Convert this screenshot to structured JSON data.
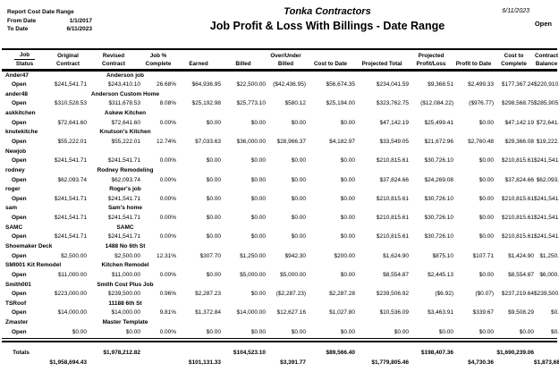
{
  "report": {
    "cost_date_range_label": "Report Cost Date Range",
    "from_date_label": "From Date",
    "from_date": "1/1/2017",
    "to_date_label": "To Date",
    "to_date": "6/11/2023",
    "company": "Tonka Contractors",
    "title": "Job Profit & Loss With Billings - Date Range",
    "print_date": "6/11/2023",
    "status_filter": "Open"
  },
  "table": {
    "columns": [
      {
        "key": "job_status",
        "line1": "Job",
        "line2": "Status"
      },
      {
        "key": "original_contract",
        "line1": "Original",
        "line2": "Contract"
      },
      {
        "key": "revised_contract",
        "line1": "Revised",
        "line2": "Contract"
      },
      {
        "key": "job_pct_complete",
        "line1": "Job %",
        "line2": "Complete"
      },
      {
        "key": "earned",
        "line1": "",
        "line2": "Earned"
      },
      {
        "key": "billed",
        "line1": "",
        "line2": "Billed"
      },
      {
        "key": "over_under_billed",
        "line1": "Over/Under",
        "line2": "Billed"
      },
      {
        "key": "cost_to_date",
        "line1": "",
        "line2": "Cost to Date"
      },
      {
        "key": "projected_total",
        "line1": "",
        "line2": "Projected Total"
      },
      {
        "key": "projected_profit_loss",
        "line1": "Projected",
        "line2": "Profit/Loss"
      },
      {
        "key": "profit_to_date",
        "line1": "",
        "line2": "Profit to Date"
      },
      {
        "key": "cost_to_complete",
        "line1": "Cost to",
        "line2": "Complete"
      },
      {
        "key": "contract_balance",
        "line1": "Contract",
        "line2": "Balance"
      }
    ],
    "jobs": [
      {
        "id": "Ander47",
        "name": "Anderson job",
        "status": "Open",
        "values": [
          "$241,541.71",
          "$243,410.10",
          "26.68%",
          "$64,936.95",
          "$22,500.00",
          "($42,436.95)",
          "$56,674.35",
          "$234,041.59",
          "$9,368.51",
          "$2,499.33",
          "$177,367.24",
          "$220,910."
        ]
      },
      {
        "id": "ander48",
        "name": "Anderson Custom Home",
        "status": "Open",
        "values": [
          "$310,528.53",
          "$311,678.53",
          "8.08%",
          "$25,192.98",
          "$25,773.10",
          "$580.12",
          "$25,194.00",
          "$323,762.75",
          "($12,084.22)",
          "($976.77)",
          "$298,568.75",
          "$285,905."
        ]
      },
      {
        "id": "askkitchen",
        "name": "Askew Kitchen",
        "status": "Open",
        "values": [
          "$72,641.60",
          "$72,641.60",
          "0.00%",
          "$0.00",
          "$0.00",
          "$0.00",
          "$0.00",
          "$47,142.19",
          "$25,499.41",
          "$0.00",
          "$47,142.19",
          "$72,641."
        ]
      },
      {
        "id": "knutekitche",
        "name": "Knutson's Kitchen",
        "status": "Open",
        "values": [
          "$55,222.01",
          "$55,222.01",
          "12.74%",
          "$7,033.63",
          "$36,000.00",
          "$28,966.37",
          "$4,182.97",
          "$33,549.05",
          "$21,672.96",
          "$2,760.48",
          "$29,366.08",
          "$19,222."
        ]
      },
      {
        "id": "Newjob",
        "name": "",
        "status": "Open",
        "values": [
          "$241,541.71",
          "$241,541.71",
          "0.00%",
          "$0.00",
          "$0.00",
          "$0.00",
          "$0.00",
          "$210,815.61",
          "$30,726.10",
          "$0.00",
          "$210,815.61",
          "$241,541."
        ]
      },
      {
        "id": "rodney",
        "name": "Rodney Remodeling",
        "status": "Open",
        "values": [
          "$62,093.74",
          "$62,093.74",
          "0.00%",
          "$0.00",
          "$0.00",
          "$0.00",
          "$0.00",
          "$37,824.66",
          "$24,269.08",
          "$0.00",
          "$37,824.66",
          "$62,093."
        ]
      },
      {
        "id": "roger",
        "name": "Roger's job",
        "status": "Open",
        "values": [
          "$241,541.71",
          "$241,541.71",
          "0.00%",
          "$0.00",
          "$0.00",
          "$0.00",
          "$0.00",
          "$210,815.61",
          "$30,726.10",
          "$0.00",
          "$210,815.61",
          "$241,541."
        ]
      },
      {
        "id": "sam",
        "name": "Sam's home",
        "status": "Open",
        "values": [
          "$241,541.71",
          "$241,541.71",
          "0.00%",
          "$0.00",
          "$0.00",
          "$0.00",
          "$0.00",
          "$210,815.61",
          "$30,726.10",
          "$0.00",
          "$210,815.61",
          "$241,541."
        ]
      },
      {
        "id": "SAMC",
        "name": "SAMC",
        "status": "Open",
        "values": [
          "$241,541.71",
          "$241,541.71",
          "0.00%",
          "$0.00",
          "$0.00",
          "$0.00",
          "$0.00",
          "$210,815.61",
          "$30,726.10",
          "$0.00",
          "$210,815.61",
          "$241,541."
        ]
      },
      {
        "id": "Shoemaker Deck",
        "name": "1488 No 6th St",
        "status": "Open",
        "values": [
          "$2,500.00",
          "$2,500.00",
          "12.31%",
          "$307.70",
          "$1,250.00",
          "$942.30",
          "$200.00",
          "$1,624.90",
          "$875.10",
          "$107.71",
          "$1,424.90",
          "$1,250."
        ]
      },
      {
        "id": "SMI001 Kit Remodel",
        "name": "Kitchen Remodel",
        "status": "Open",
        "values": [
          "$11,000.00",
          "$11,000.00",
          "0.00%",
          "$0.00",
          "$5,000.00",
          "$5,000.00",
          "$0.00",
          "$8,554.87",
          "$2,445.13",
          "$0.00",
          "$8,554.87",
          "$6,000."
        ]
      },
      {
        "id": "Smith001",
        "name": "Smith Cost Plus Job",
        "status": "Open",
        "values": [
          "$223,000.00",
          "$239,500.00",
          "0.96%",
          "$2,287.23",
          "$0.00",
          "($2,287.23)",
          "$2,287.28",
          "$239,506.92",
          "($6.92)",
          "($0.07)",
          "$237,219.64",
          "$239,500."
        ]
      },
      {
        "id": "TSRoof",
        "name": "11188 6th St",
        "status": "Open",
        "values": [
          "$14,000.00",
          "$14,000.00",
          "9.81%",
          "$1,372.84",
          "$14,000.00",
          "$12,627.16",
          "$1,027.80",
          "$10,536.09",
          "$3,463.91",
          "$339.67",
          "$9,508.29",
          "$0."
        ]
      },
      {
        "id": "Zmaster",
        "name": "Master Template",
        "status": "Open",
        "values": [
          "$0.00",
          "$0.00",
          "0.00%",
          "$0.00",
          "$0.00",
          "$0.00",
          "$0.00",
          "$0.00",
          "$0.00",
          "$0.00",
          "$0.00",
          "$0."
        ]
      }
    ],
    "totals": {
      "row1": [
        "Totals",
        "",
        "$1,978,212.82",
        "",
        "",
        "$104,523.10",
        "",
        "$89,566.40",
        "",
        "$198,407.36",
        "",
        "$1,690,239.06",
        ""
      ],
      "row2": [
        "",
        "$1,958,694.43",
        "",
        "",
        "$101,131.33",
        "",
        "$3,391.77",
        "",
        "$1,779,805.46",
        "",
        "$4,730.36",
        "",
        "$1,873,689."
      ]
    }
  }
}
